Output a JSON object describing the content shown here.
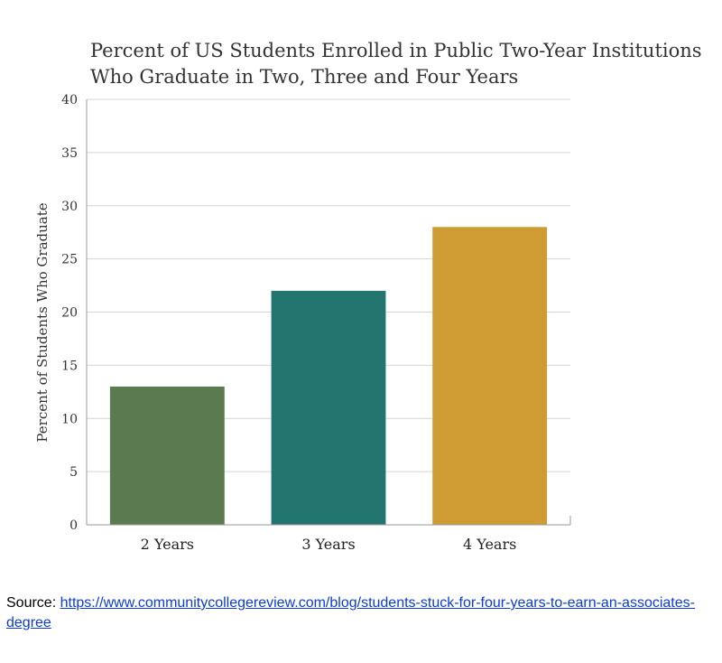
{
  "chart_data": {
    "type": "bar",
    "title_lines": [
      "Percent of US Students Enrolled in Public Two-Year Institutions",
      "Who Graduate in Two, Three and Four Years"
    ],
    "ylabel": "Percent of Students Who Graduate",
    "xlabel": "",
    "ylim": [
      0,
      40
    ],
    "yticks": [
      0,
      5,
      10,
      15,
      20,
      25,
      30,
      35,
      40
    ],
    "grid": true,
    "categories": [
      "2 Years",
      "3 Years",
      "4 Years"
    ],
    "values": [
      13,
      22,
      28
    ],
    "colors": [
      "#5b7a4f",
      "#23766f",
      "#cf9c33"
    ]
  },
  "source": {
    "prefix": "Source: ",
    "link_text": "https://www.communitycollegereview.com/blog/students-stuck-for-four-years-to-earn-an-associates-degree"
  }
}
